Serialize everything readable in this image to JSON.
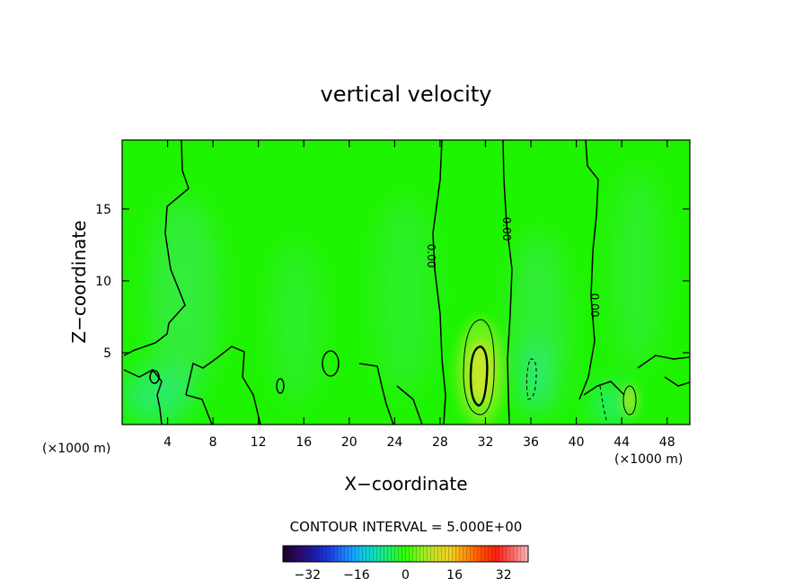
{
  "chart_data": {
    "type": "heatmap",
    "title": "vertical velocity",
    "xlabel": "X−coordinate",
    "ylabel": "Z−coordinate",
    "x_unit_left": "(×1000 m)",
    "x_unit_right": "(×1000 m)",
    "xlim": [
      0,
      50
    ],
    "ylim": [
      0,
      19.8
    ],
    "x_ticks": [
      4,
      8,
      12,
      16,
      20,
      24,
      28,
      32,
      36,
      40,
      44,
      48
    ],
    "y_ticks": [
      5,
      10,
      15
    ],
    "contour_interval_label": "CONTOUR INTERVAL = 5.000E+00",
    "contour_labels": [
      "0.00",
      "0.00",
      "0.00"
    ],
    "colorbar": {
      "ticks": [
        -32,
        -16,
        0,
        16,
        32
      ],
      "tick_labels": [
        "−32",
        "−16",
        "0",
        "16",
        "32"
      ],
      "range": [
        -40,
        40
      ],
      "colors": [
        "#200030",
        "#2a0a6e",
        "#1c1cb0",
        "#1a40e0",
        "#1c80ff",
        "#10c0f0",
        "#10e0b0",
        "#20f060",
        "#30ff00",
        "#90f020",
        "#d0e020",
        "#f0d020",
        "#ff9010",
        "#ff5000",
        "#ff2010",
        "#ff6060",
        "#ffb0b0"
      ]
    },
    "features": [
      {
        "kind": "updraft",
        "x": 31.5,
        "z": 4.0,
        "peak": 10
      },
      {
        "kind": "updraft",
        "x": 44.5,
        "z": 1.7,
        "peak": 6
      },
      {
        "kind": "downdraft",
        "x": 36.0,
        "z": 3.5,
        "peak": -5
      },
      {
        "kind": "downdraft",
        "x": 43.0,
        "z": 1.8,
        "peak": -5
      }
    ]
  }
}
